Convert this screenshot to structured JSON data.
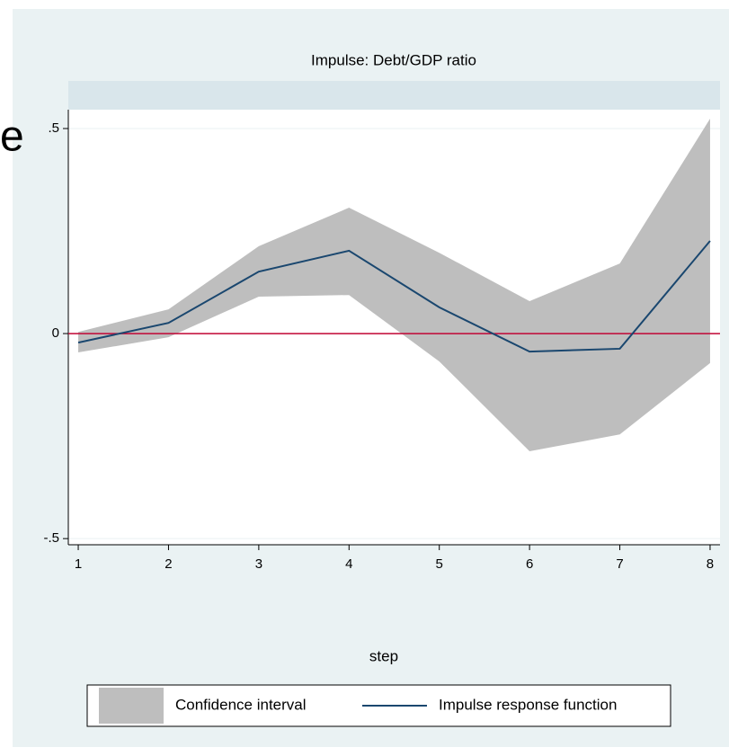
{
  "chart_data": {
    "type": "line",
    "title": "Impulse: Debt/GDP ratio",
    "stray_text": "e",
    "x_label": "step",
    "x": [
      1,
      2,
      3,
      4,
      5,
      6,
      7,
      8
    ],
    "series": [
      {
        "name": "Confidence interval",
        "kind": "band",
        "color": "#bebebe",
        "upper": [
          0.004,
          0.059,
          0.213,
          0.307,
          0.197,
          0.079,
          0.171,
          0.524
        ],
        "lower": [
          -0.046,
          -0.009,
          0.09,
          0.094,
          -0.068,
          -0.287,
          -0.246,
          -0.072
        ]
      },
      {
        "name": "Impulse response function",
        "kind": "line",
        "color": "#1a476f",
        "values": [
          -0.022,
          0.026,
          0.151,
          0.202,
          0.064,
          -0.044,
          -0.037,
          0.226
        ]
      }
    ],
    "reference_line": {
      "value": 0,
      "color": "#c10534"
    },
    "xlim": [
      0.89,
      8.11
    ],
    "ylim": [
      -0.515,
      0.546
    ],
    "xticks": [
      1,
      2,
      3,
      4,
      5,
      6,
      7,
      8
    ],
    "yticks": [
      {
        "value": -0.5,
        "label": "-.5"
      },
      0,
      {
        "value": 0.5,
        "label": ".5"
      }
    ],
    "grid": true,
    "legend": "bottom"
  }
}
